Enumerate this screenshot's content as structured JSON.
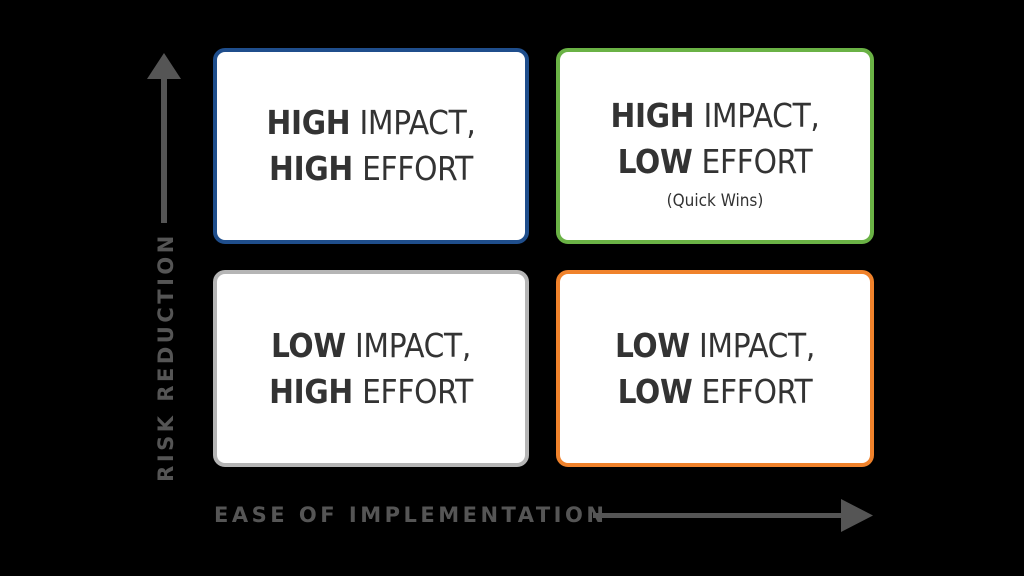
{
  "colors": {
    "background": "#000000",
    "box_fill": "#ffffff",
    "text": "#333333",
    "axis": "#555555",
    "border_top_left": "#1f4e8c",
    "border_top_right": "#6ab245",
    "border_bottom_left": "#b5b5b5",
    "border_bottom_right": "#f0822b"
  },
  "quadrants": {
    "top_left": {
      "line1_bold": "HIGH",
      "line1_rest": " IMPACT,",
      "line2_bold": "HIGH",
      "line2_rest": " EFFORT"
    },
    "top_right": {
      "line1_bold": "HIGH",
      "line1_rest": " IMPACT,",
      "line2_bold": "LOW",
      "line2_rest": " EFFORT",
      "note": "(Quick Wins)"
    },
    "bottom_left": {
      "line1_bold": "LOW",
      "line1_rest": " IMPACT,",
      "line2_bold": "HIGH",
      "line2_rest": " EFFORT"
    },
    "bottom_right": {
      "line1_bold": "LOW",
      "line1_rest": " IMPACT,",
      "line2_bold": "LOW",
      "line2_rest": " EFFORT"
    }
  },
  "axes": {
    "y_label": "RISK REDUCTION",
    "x_label": "EASE OF IMPLEMENTATION",
    "y_arrow_icon": "arrow-up-icon",
    "x_arrow_icon": "arrow-right-icon"
  }
}
